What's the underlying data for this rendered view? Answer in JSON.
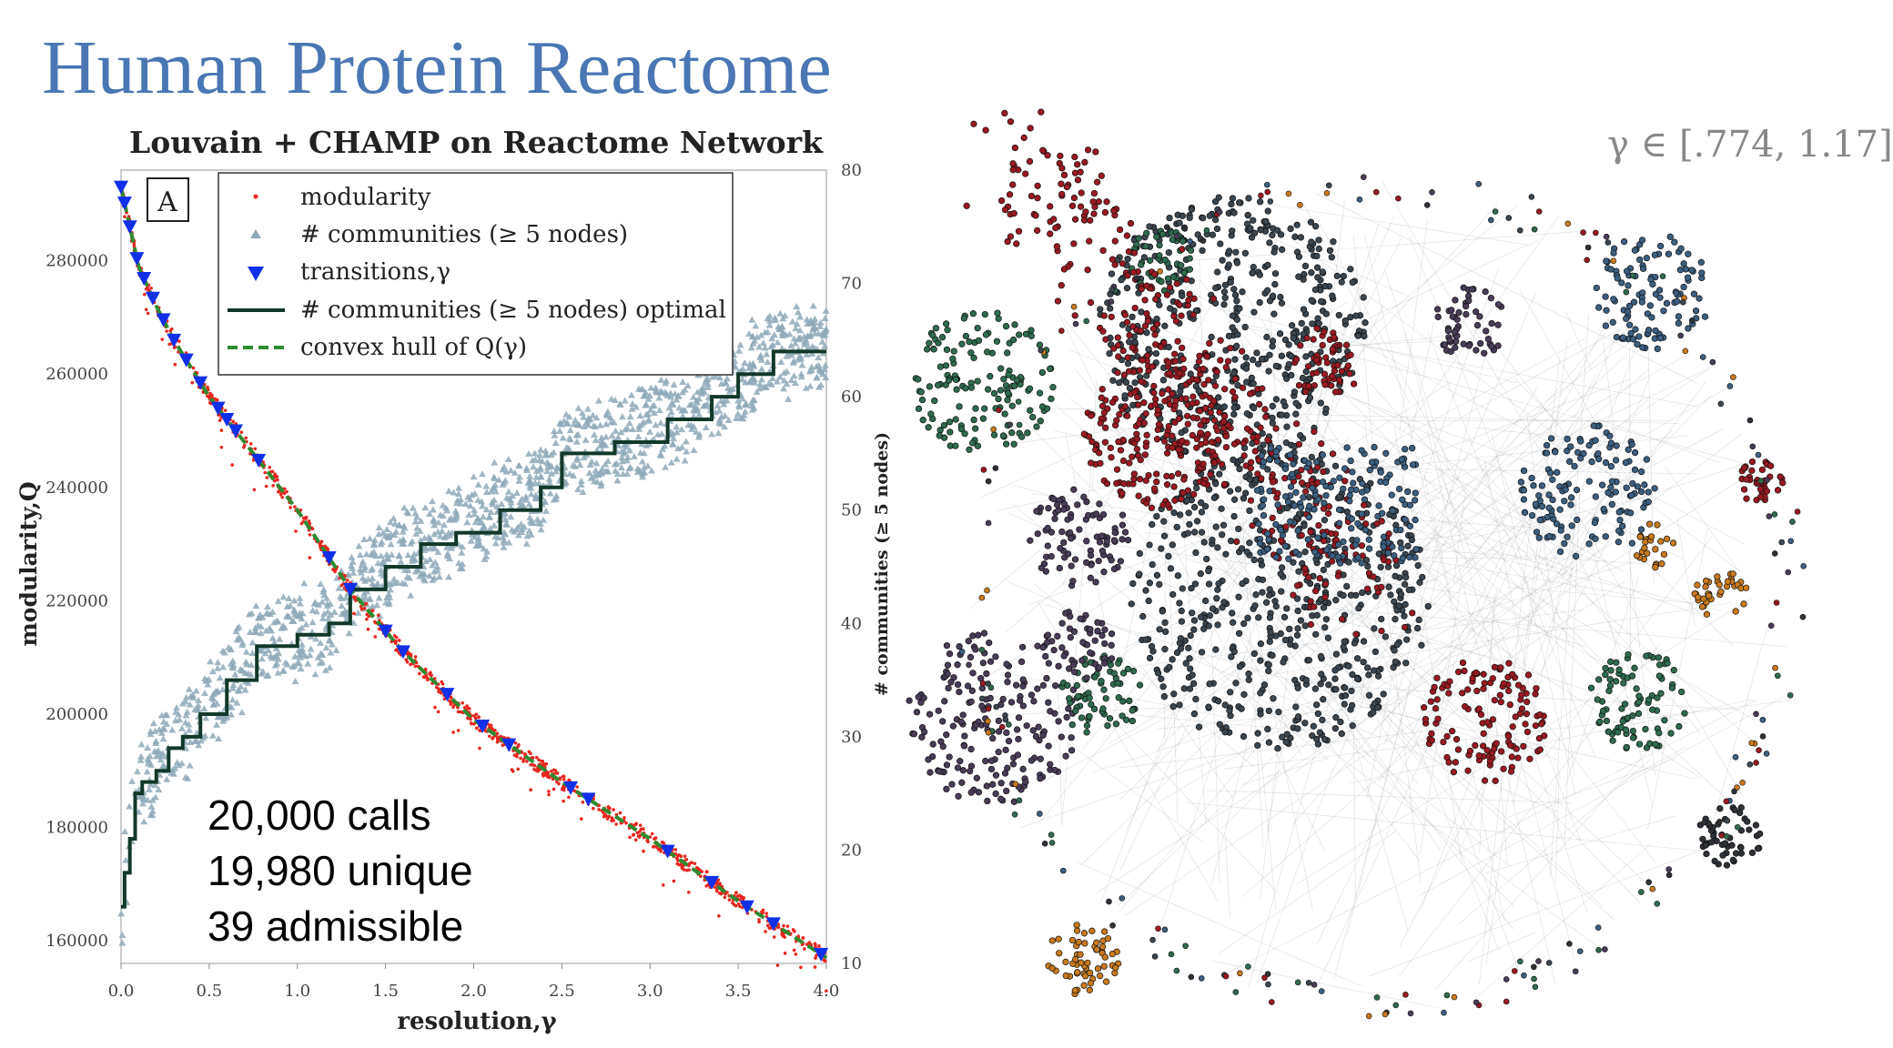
{
  "slide": {
    "title": "Human Protein Reactome",
    "notes": [
      "20,000 calls",
      "19,980 unique",
      "39 admissible"
    ],
    "gamma_range": "γ ∈ [.774, 1.17]"
  },
  "colors": {
    "title": "#4a76b4",
    "modularity": "#e8261e",
    "communities_scatter": "#8fa9b8",
    "transitions": "#1030e8",
    "optimal_line": "#123828",
    "hull_line": "#2e8a2e"
  },
  "network": {
    "cluster_colors": [
      "#3a4650",
      "#9a1a22",
      "#2f6b4d",
      "#4a3c58",
      "#3c5f80",
      "#c8791e",
      "#2e3238"
    ]
  },
  "chart_data": {
    "type": "scatter",
    "title": "Louvain + CHAMP on Reactome Network",
    "panel_label": "A",
    "xlabel": "resolution,γ",
    "ylabel_left": "modularity,Q",
    "ylabel_right": "# communities (≥ 5 nodes)",
    "xlim": [
      0.0,
      4.0
    ],
    "ylim_left": [
      156000,
      296000
    ],
    "ylim_right": [
      10,
      80
    ],
    "xticks": [
      "0.0",
      "0.5",
      "1.0",
      "1.5",
      "2.0",
      "2.5",
      "3.0",
      "3.5",
      "4.0"
    ],
    "yticks_left": [
      "160000",
      "180000",
      "200000",
      "220000",
      "240000",
      "260000",
      "280000"
    ],
    "yticks_right": [
      "10",
      "20",
      "30",
      "40",
      "50",
      "60",
      "70",
      "80"
    ],
    "legend_position": "top-left",
    "legend": [
      {
        "name": "modularity",
        "marker": "dot"
      },
      {
        "name": "# communities (≥ 5 nodes)",
        "marker": "triangle-up"
      },
      {
        "name": "transitions,γ",
        "marker": "triangle-down"
      },
      {
        "name": "# communities (≥ 5 nodes) optimal",
        "marker": "solid-line"
      },
      {
        "name": "convex hull of Q(γ)",
        "marker": "dashed-line"
      }
    ],
    "modularity_curve": {
      "x": [
        0.0,
        0.1,
        0.2,
        0.3,
        0.5,
        0.75,
        1.0,
        1.3,
        1.6,
        2.0,
        2.5,
        3.0,
        3.5,
        4.0
      ],
      "y": [
        293000,
        279000,
        272000,
        266000,
        256000,
        246000,
        236000,
        222000,
        211000,
        199000,
        188000,
        178000,
        167000,
        157000
      ]
    },
    "transitions_gamma": [
      0.0,
      0.02,
      0.05,
      0.09,
      0.13,
      0.18,
      0.24,
      0.3,
      0.37,
      0.45,
      0.55,
      0.6,
      0.65,
      0.78,
      1.18,
      1.3,
      1.5,
      1.6,
      1.85,
      2.05,
      2.2,
      2.55,
      2.65,
      3.1,
      3.35,
      3.55,
      3.7,
      3.97
    ],
    "optimal_communities_steps": {
      "x": [
        0.0,
        0.02,
        0.05,
        0.08,
        0.12,
        0.2,
        0.27,
        0.35,
        0.45,
        0.6,
        0.77,
        1.0,
        1.18,
        1.3,
        1.5,
        1.7,
        1.9,
        2.15,
        2.38,
        2.5,
        2.8,
        3.1,
        3.35,
        3.5,
        3.7,
        4.0
      ],
      "y": [
        15,
        18,
        21,
        25,
        26,
        27,
        29,
        30,
        32,
        35,
        38,
        39,
        40,
        43,
        45,
        47,
        48,
        50,
        52,
        55,
        56,
        58,
        60,
        62,
        64,
        64
      ]
    },
    "communities_scatter_spread": 3.5
  }
}
